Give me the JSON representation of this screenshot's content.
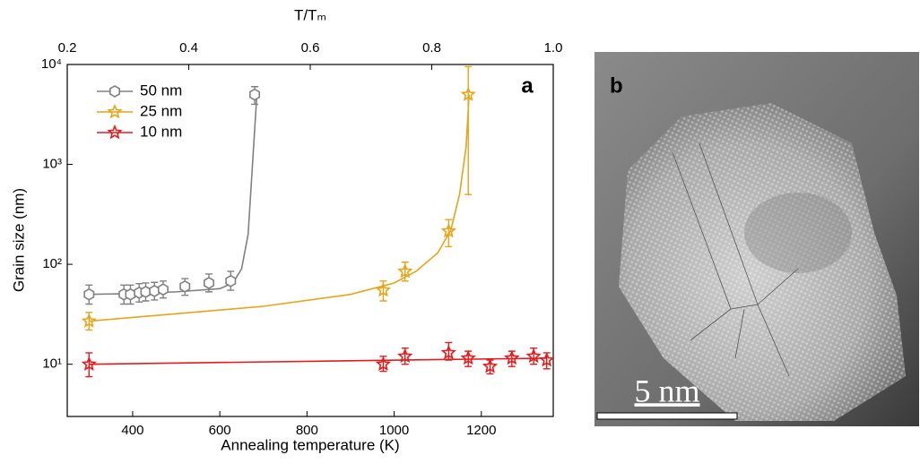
{
  "chart_data": {
    "type": "line",
    "log_y": true,
    "x_label": "Annealing temperature (K)",
    "y_label": "Grain size (nm)",
    "x2_label": "T/Tₘ",
    "panel_label": "a",
    "xlim": [
      250,
      1365
    ],
    "xticks": [
      400,
      600,
      800,
      1000,
      1200
    ],
    "x2lim": [
      0.2,
      1.0
    ],
    "x2ticks": [
      0.2,
      0.4,
      0.6,
      0.8,
      {
        "value": 1.0,
        "label": "1.0"
      }
    ],
    "ylim": [
      3,
      10000
    ],
    "yticks": [
      {
        "value": 10,
        "label": "10¹"
      },
      {
        "value": 100,
        "label": "10²"
      },
      {
        "value": 1000,
        "label": "10³"
      },
      {
        "value": 10000,
        "label": "10⁴"
      }
    ],
    "legend": "upper left",
    "series": [
      {
        "name": "50 nm",
        "color": "#808080",
        "marker": "hexagon",
        "x": [
          300,
          380,
          395,
          415,
          430,
          450,
          470,
          520,
          575,
          625,
          680
        ],
        "values": [
          50,
          50,
          50,
          52,
          53,
          54,
          56,
          60,
          65,
          68,
          5000
        ],
        "error_low": [
          40,
          40,
          40,
          42,
          43,
          44,
          46,
          49,
          53,
          55,
          4000
        ],
        "error_high": [
          62,
          62,
          62,
          64,
          65,
          66,
          68,
          72,
          80,
          85,
          6000
        ],
        "fit_x": [
          300,
          400,
          500,
          600,
          630,
          650,
          665,
          675,
          685
        ],
        "fit_values": [
          50,
          51,
          53,
          57,
          65,
          90,
          200,
          1000,
          5000
        ]
      },
      {
        "name": "25 nm",
        "color": "#e8a317",
        "marker": "star",
        "x": [
          300,
          975,
          1025,
          1125,
          1170
        ],
        "values": [
          27,
          55,
          85,
          215,
          5000
        ],
        "error_low": [
          22,
          43,
          68,
          150,
          500
        ],
        "error_high": [
          33,
          68,
          105,
          280,
          9500
        ],
        "fit_x": [
          300,
          500,
          700,
          900,
          1000,
          1050,
          1100,
          1130,
          1150,
          1165,
          1172
        ],
        "fit_values": [
          27,
          32,
          38,
          50,
          65,
          85,
          130,
          220,
          500,
          1500,
          5000
        ]
      },
      {
        "name": "10 nm",
        "color": "#e8191b",
        "marker": "star",
        "x": [
          300,
          975,
          1025,
          1125,
          1170,
          1220,
          1270,
          1320,
          1350
        ],
        "values": [
          10,
          10,
          12,
          13,
          11.5,
          9.5,
          11.5,
          12,
          11
        ],
        "error_low": [
          7.5,
          8.5,
          10,
          11,
          9.5,
          8,
          9.5,
          10,
          9
        ],
        "error_high": [
          13,
          12,
          14.5,
          16.5,
          13.5,
          11,
          13.5,
          14.5,
          13
        ],
        "fit_x": [
          300,
          1350
        ],
        "fit_values": [
          10,
          11.5
        ]
      }
    ]
  },
  "image": {
    "panel_label": "b",
    "scale_bar": "5 nm"
  }
}
